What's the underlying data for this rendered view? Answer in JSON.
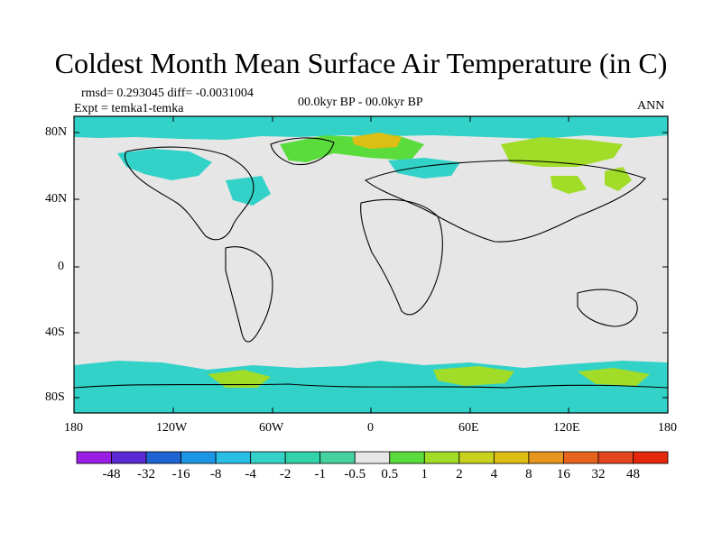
{
  "header": {
    "title": "Coldest Month Mean Surface Air Temperature (in C)",
    "stats": "rmsd= 0.293045 diff= -0.0031004",
    "experiment": "Expt = temka1-temka",
    "period": "00.0kyr BP - 00.0kyr BP",
    "season": "ANN"
  },
  "axes": {
    "y_ticks": [
      "80N",
      "40N",
      "0",
      "40S",
      "80S"
    ],
    "x_ticks": [
      "180",
      "120W",
      "60W",
      "0",
      "60E",
      "120E",
      "180"
    ]
  },
  "colorbar": {
    "labels": [
      "-48",
      "-32",
      "-16",
      "-8",
      "-4",
      "-2",
      "-1",
      "-0.5",
      "0.5",
      "1",
      "2",
      "4",
      "8",
      "16",
      "32",
      "48"
    ],
    "colors": [
      "#9a1ee6",
      "#5a2ad2",
      "#1e64d2",
      "#1e96e6",
      "#28bee6",
      "#32d2c8",
      "#32d2aa",
      "#46d2a0",
      "#e6e6e6",
      "#5adc3c",
      "#a0dc28",
      "#c8d21e",
      "#dcbe14",
      "#e6961e",
      "#e6641e",
      "#e6461e",
      "#e6280a"
    ]
  },
  "map": {
    "background_color": "#e6e6e6",
    "regions": [
      {
        "name": "arctic-band",
        "color": "#32d2c8"
      },
      {
        "name": "greenland-east",
        "color": "#5adc3c"
      },
      {
        "name": "scandinavia-warm",
        "color": "#dcbe14"
      },
      {
        "name": "north-america",
        "color": "#32d2c8"
      },
      {
        "name": "siberia",
        "color": "#a0dc28"
      },
      {
        "name": "antarctic-band",
        "color": "#32d2c8"
      },
      {
        "name": "antarctic-warm",
        "color": "#a0dc28"
      }
    ]
  }
}
